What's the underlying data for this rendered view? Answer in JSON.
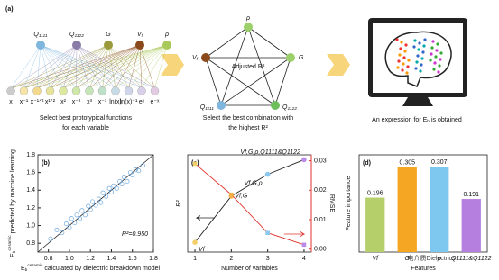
{
  "panel_a": {
    "label": "(a)",
    "variables": [
      {
        "base": "Q",
        "sub": "1111"
      },
      {
        "base": "Q",
        "sub": "1122"
      },
      {
        "base": "G"
      },
      {
        "base": "V",
        "sub": "f"
      },
      {
        "base": "ρ"
      }
    ],
    "functions": [
      "x",
      "x⁻¹",
      "x⁻¹ᐟ²",
      "x¹ᐟ²",
      "x²",
      "x⁻²",
      "x³",
      "x⁻³",
      "ln(x)",
      "ln(x)⁻¹",
      "eˣ",
      "e⁻ˣ"
    ],
    "caption_1": [
      "Select best prototypical functions",
      "for each variable"
    ],
    "pentagon_nodes": [
      {
        "base": "ρ"
      },
      {
        "base": "V",
        "sub": "f"
      },
      {
        "base": "G"
      },
      {
        "base": "Q",
        "sub": "1111"
      },
      {
        "base": "Q",
        "sub": "1122"
      }
    ],
    "pentagon_center": "Adjusted R²",
    "caption_2": [
      "Select the best combination with",
      "the highest R²"
    ],
    "caption_3": {
      "text": "An expression for E",
      "sub": "b",
      "tail": " is obtained"
    }
  },
  "chart_data": [
    {
      "type": "scatter",
      "label": "(b)",
      "color": "#6fa8dc",
      "x": [
        0.82,
        0.88,
        0.93,
        0.97,
        1.0,
        1.02,
        1.05,
        1.07,
        1.1,
        1.12,
        1.15,
        1.18,
        1.2,
        1.22,
        1.25,
        1.28,
        1.3,
        1.32,
        1.35,
        1.38,
        1.4,
        1.42,
        1.45,
        1.48,
        1.5,
        1.52,
        1.55,
        1.58,
        1.6,
        1.63,
        1.66,
        1.7
      ],
      "y": [
        0.85,
        0.95,
        0.92,
        1.02,
        0.98,
        1.08,
        1.03,
        1.12,
        1.08,
        1.17,
        1.12,
        1.22,
        1.18,
        1.27,
        1.23,
        1.3,
        1.26,
        1.37,
        1.33,
        1.42,
        1.38,
        1.45,
        1.42,
        1.5,
        1.47,
        1.55,
        1.5,
        1.6,
        1.57,
        1.63,
        1.62,
        1.68
      ],
      "xlim": [
        0.7,
        1.8
      ],
      "ylim": [
        0.7,
        1.8
      ],
      "xticks": [
        0.8,
        {
          "value": 1,
          "label": "1.0"
        },
        1.2,
        1.4,
        1.6,
        1.8
      ],
      "yticks": [
        0.8,
        {
          "value": 1,
          "label": "1.0"
        },
        1.2,
        1.4,
        1.6,
        1.8
      ],
      "annotation": "R²=0.950",
      "xlabel": {
        "base": "E",
        "sub": "b",
        "sup": "ceramic",
        "text": " calculated by dielectric breakdown model"
      },
      "ylabel": {
        "base": "E",
        "sub": "b",
        "sup": "ceramic",
        "text": " predicted by machine learning"
      }
    },
    {
      "type": "line",
      "label": "(c)",
      "x": [
        1,
        2,
        3,
        4
      ],
      "xlim": [
        0.8,
        4.2
      ],
      "xticks": [
        1,
        2,
        3,
        4
      ],
      "ylim": [
        0.2,
        1.0
      ],
      "y2lim": [
        -0.001,
        0.032
      ],
      "y2ticks": [
        {
          "value": 0,
          "label": "0.00"
        },
        0.01,
        0.02,
        0.03
      ],
      "marker_colors": [
        "#f3cf6a",
        "#f3b04a",
        "#8cc8ef",
        "#b98be6"
      ],
      "series": [
        {
          "name": "R²",
          "color": "#222222",
          "values": [
            0.28,
            0.66,
            0.84,
            0.96
          ]
        },
        {
          "name": "RMSE",
          "color": "#e0312b",
          "axis": "y2",
          "values": [
            0.029,
            0.0185,
            0.0055,
            0.0015
          ]
        }
      ],
      "point_labels": [
        "Vf",
        "Vf,G",
        "Vf,G,ρ",
        "Vf,G,ρ,Q1111&Q1122"
      ],
      "xlabel": "Number of variables"
    },
    {
      "type": "bar",
      "label": "(d)",
      "categories": [
        "Vf",
        "G",
        "ρ",
        "Q1111&Q1122"
      ],
      "values": [
        0.196,
        0.305,
        0.307,
        0.191
      ],
      "colors": [
        "#b5cf6b",
        "#f5a623",
        "#7ec8f0",
        "#b57fe0"
      ],
      "ylim": [
        0,
        0.35
      ],
      "xlabel": "Features",
      "ylabel": "Feature importance"
    }
  ],
  "watermark": "电介质Dielectrics"
}
